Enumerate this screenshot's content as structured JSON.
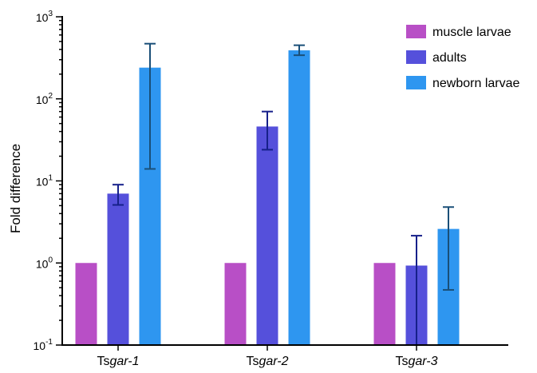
{
  "chart_data": {
    "type": "bar",
    "ylabel": "Fold difference",
    "yscale": "log",
    "ylim": [
      0.1,
      1000
    ],
    "yticks": [
      {
        "value": 0.1,
        "base": "10",
        "exp": "-1"
      },
      {
        "value": 1,
        "base": "10",
        "exp": "0"
      },
      {
        "value": 10,
        "base": "10",
        "exp": "1"
      },
      {
        "value": 100,
        "base": "10",
        "exp": "2"
      },
      {
        "value": 1000,
        "base": "10",
        "exp": "3"
      }
    ],
    "categories": [
      {
        "prefix": "Ts",
        "italic": "gar-1"
      },
      {
        "prefix": "Ts",
        "italic": "gar-2"
      },
      {
        "prefix": "Ts",
        "italic": "gar-3"
      }
    ],
    "series": [
      {
        "name": "muscle larvae",
        "color": "#b84fc6",
        "error_color": "#b84fc6",
        "values": [
          1,
          1,
          1
        ],
        "error_low": [
          null,
          null,
          null
        ],
        "error_high": [
          null,
          null,
          null
        ]
      },
      {
        "name": "adults",
        "color": "#5550db",
        "error_color": "#16208a",
        "values": [
          7,
          46,
          0.93
        ],
        "error_low": [
          5.1,
          24,
          0.1
        ],
        "error_high": [
          9,
          70,
          2.15
        ]
      },
      {
        "name": "newborn larvae",
        "color": "#2e96f0",
        "error_color": "#1a4f78",
        "values": [
          240,
          390,
          2.6
        ],
        "error_low": [
          14,
          340,
          0.47
        ],
        "error_high": [
          470,
          450,
          4.8
        ]
      }
    ],
    "legend_position": "top-right",
    "grid": false
  }
}
